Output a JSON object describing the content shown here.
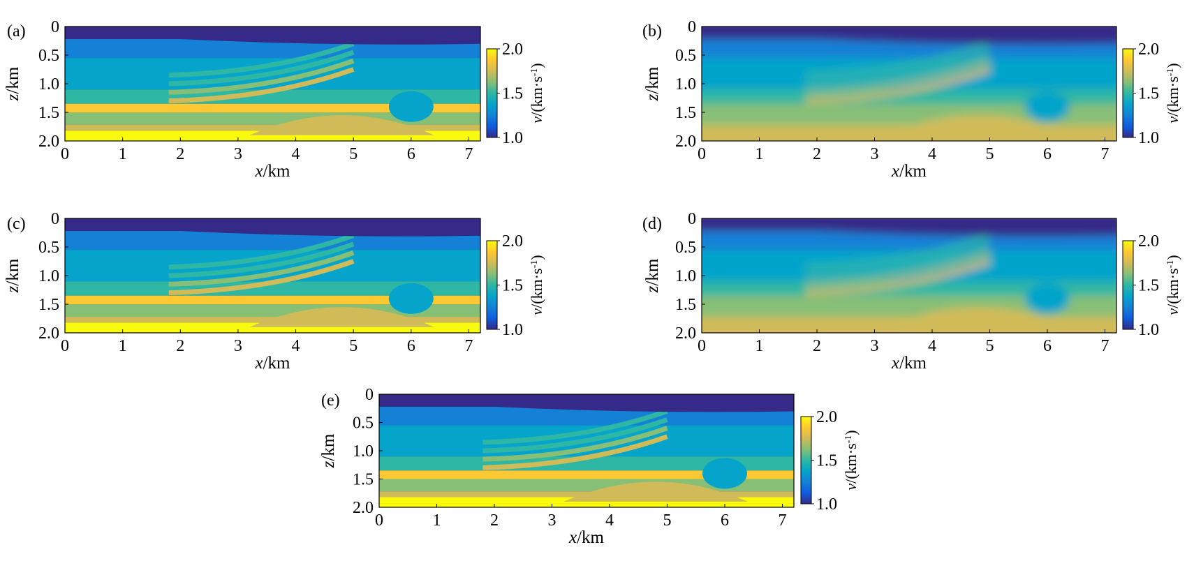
{
  "colorscale": {
    "name": "parula",
    "stops": [
      "#352a87",
      "#0f5cdd",
      "#1481d6",
      "#06a4ca",
      "#2eb7a4",
      "#87bf77",
      "#d1bb59",
      "#fec832",
      "#f9fb0e"
    ]
  },
  "chart_data": [
    {
      "type": "heatmap",
      "label": "(a)",
      "smooth": false,
      "xlabel": {
        "var": "x",
        "unit": "/km"
      },
      "ylabel": {
        "var": "z",
        "unit": "/km"
      },
      "xlim": [
        0,
        7.2
      ],
      "ylim": [
        0,
        2.0
      ],
      "xticks": [
        "0",
        "1",
        "2",
        "3",
        "4",
        "5",
        "6",
        "7"
      ],
      "yticks": [
        "0",
        "0.5",
        "1.0",
        "1.5",
        "2.0"
      ],
      "colorbar": {
        "min": 1.0,
        "max": 2.0,
        "ticks": [
          "1.0",
          "1.5",
          "2.0"
        ],
        "label_var": "v",
        "label_unit": "/(km·s",
        "label_sup": "-1",
        "label_close": ")"
      }
    },
    {
      "type": "heatmap",
      "label": "(b)",
      "smooth": true,
      "xlabel": {
        "var": "x",
        "unit": "/km"
      },
      "ylabel": {
        "var": "z",
        "unit": "/km"
      },
      "xlim": [
        0,
        7.2
      ],
      "ylim": [
        0,
        2.0
      ],
      "xticks": [
        "0",
        "1",
        "2",
        "3",
        "4",
        "5",
        "6",
        "7"
      ],
      "yticks": [
        "0",
        "0.5",
        "1.0",
        "1.5",
        "2.0"
      ],
      "colorbar": {
        "min": 1.0,
        "max": 2.0,
        "ticks": [
          "1.0",
          "1.5",
          "2.0"
        ],
        "label_var": "v",
        "label_unit": "/(km·s",
        "label_sup": "-1",
        "label_close": ")"
      }
    },
    {
      "type": "heatmap",
      "label": "(c)",
      "smooth": false,
      "xlabel": {
        "var": "x",
        "unit": "/km"
      },
      "ylabel": {
        "var": "z",
        "unit": "/km"
      },
      "xlim": [
        0,
        7.2
      ],
      "ylim": [
        0,
        2.0
      ],
      "xticks": [
        "0",
        "1",
        "2",
        "3",
        "4",
        "5",
        "6",
        "7"
      ],
      "yticks": [
        "0",
        "0.5",
        "1.0",
        "1.5",
        "2.0"
      ],
      "colorbar": {
        "min": 1.0,
        "max": 2.0,
        "ticks": [
          "1.0",
          "1.5",
          "2.0"
        ],
        "label_var": "v",
        "label_unit": "/(km·s",
        "label_sup": "-1",
        "label_close": ")"
      }
    },
    {
      "type": "heatmap",
      "label": "(d)",
      "smooth": true,
      "xlabel": {
        "var": "x",
        "unit": "/km"
      },
      "ylabel": {
        "var": "z",
        "unit": "/km"
      },
      "xlim": [
        0,
        7.2
      ],
      "ylim": [
        0,
        2.0
      ],
      "xticks": [
        "0",
        "1",
        "2",
        "3",
        "4",
        "5",
        "6",
        "7"
      ],
      "yticks": [
        "0",
        "0.5",
        "1.0",
        "1.5",
        "2.0"
      ],
      "colorbar": {
        "min": 1.0,
        "max": 2.0,
        "ticks": [
          "1.0",
          "1.5",
          "2.0"
        ],
        "label_var": "v",
        "label_unit": "/(km·s",
        "label_sup": "-1",
        "label_close": ")"
      }
    },
    {
      "type": "heatmap",
      "label": "(e)",
      "smooth": false,
      "xlabel": {
        "var": "x",
        "unit": "/km"
      },
      "ylabel": {
        "var": "z",
        "unit": "/km"
      },
      "xlim": [
        0,
        7.2
      ],
      "ylim": [
        0,
        2.0
      ],
      "xticks": [
        "0",
        "1",
        "2",
        "3",
        "4",
        "5",
        "6",
        "7"
      ],
      "yticks": [
        "0",
        "0.5",
        "1.0",
        "1.5",
        "2.0"
      ],
      "colorbar": {
        "min": 1.0,
        "max": 2.0,
        "ticks": [
          "1.0",
          "1.5",
          "2.0"
        ],
        "label_var": "v",
        "label_unit": "/(km·s",
        "label_sup": "-1",
        "label_close": ")"
      }
    }
  ]
}
